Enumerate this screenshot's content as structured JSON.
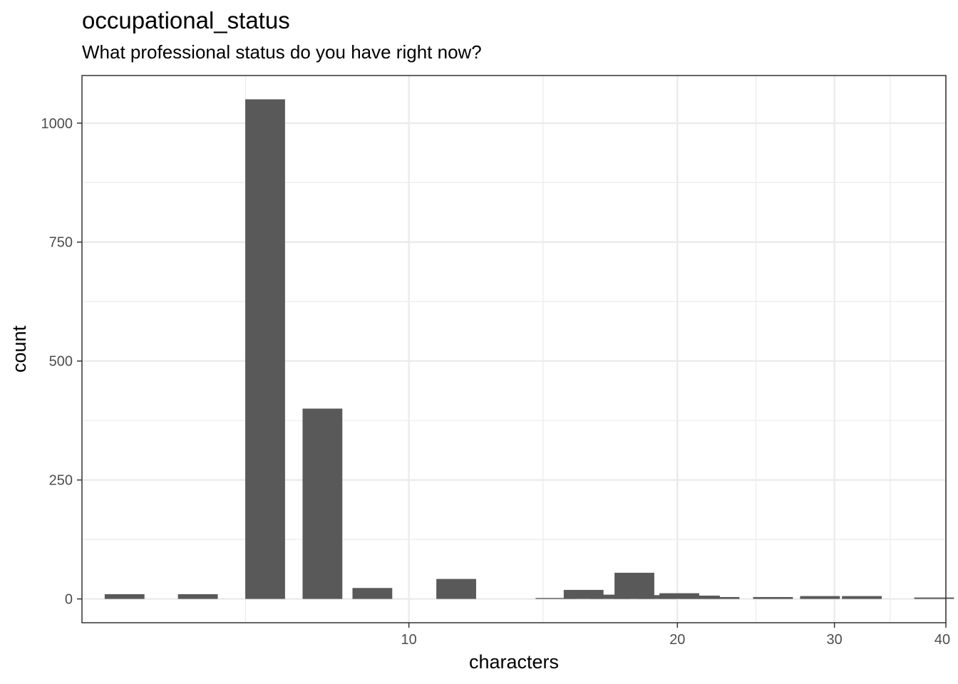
{
  "chart_data": {
    "type": "bar",
    "title": "occupational_status",
    "subtitle": "What professional status do you have right now?",
    "xlabel": "characters",
    "ylabel": "count",
    "x_scale": "log10",
    "xlim": [
      4.3,
      40
    ],
    "ylim": [
      -50,
      1100
    ],
    "x_ticks": [
      10,
      20,
      30,
      40
    ],
    "x_tick_labels": [
      "10",
      "20",
      "30",
      "40"
    ],
    "y_ticks": [
      0,
      250,
      500,
      750,
      1000
    ],
    "y_tick_labels": [
      "0",
      "250",
      "500",
      "750",
      "1000"
    ],
    "grid": true,
    "bar_color": "#595959",
    "x": [
      4.8,
      5.8,
      6.9,
      8.0,
      9.1,
      11.3,
      14.6,
      15.7,
      16.8,
      17.9,
      19.0,
      20.1,
      21.2,
      22.3,
      25.6,
      28.9,
      32.2,
      38.8
    ],
    "values": [
      10,
      10,
      1050,
      400,
      23,
      42,
      2,
      19,
      9,
      55,
      8,
      12,
      7,
      4,
      4,
      6,
      6,
      3
    ]
  }
}
